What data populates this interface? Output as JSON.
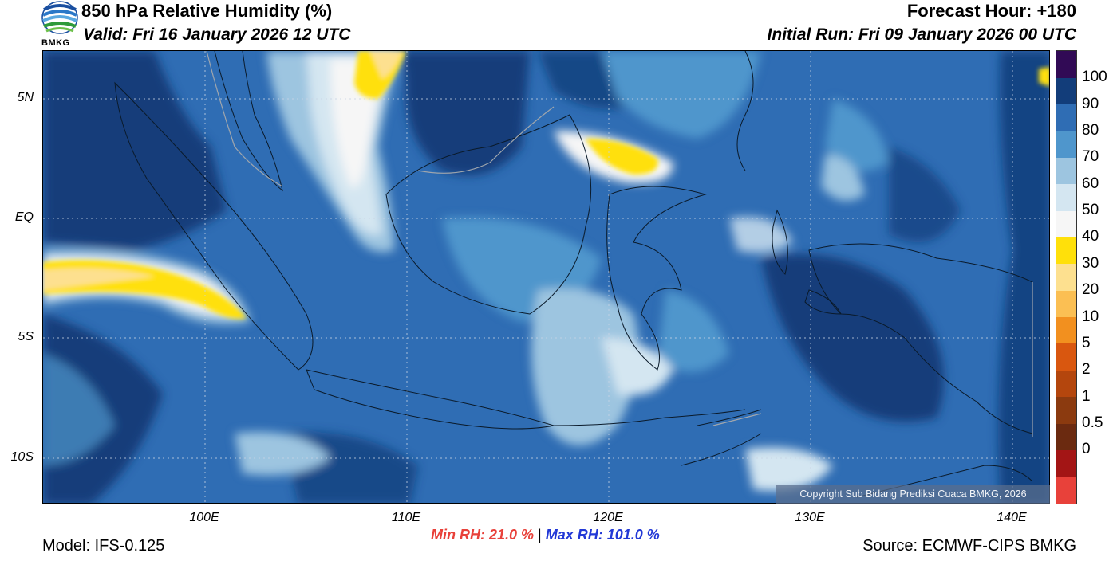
{
  "header": {
    "title": "850 hPa Relative Humidity (%)",
    "valid": "Valid: Fri 16 January 2026 12 UTC",
    "forecast_hour": "Forecast Hour: +180",
    "initial_run": "Initial Run: Fri 09 January 2026 00 UTC"
  },
  "logo": {
    "text": "BMKG",
    "icon": "bmkg-logo-icon"
  },
  "map": {
    "lat_labels": [
      "5N",
      "EQ",
      "5S",
      "10S"
    ],
    "lon_labels": [
      "100E",
      "110E",
      "120E",
      "130E",
      "140E"
    ],
    "copyright": "Copyright Sub Bidang Prediksi Cuaca BMKG, 2026"
  },
  "colorbar": {
    "labels": [
      "100",
      "90",
      "80",
      "70",
      "60",
      "50",
      "40",
      "30",
      "20",
      "10",
      "5",
      "2",
      "1",
      "0.5",
      "0"
    ],
    "colors": [
      "#e8413a",
      "#a31515",
      "#6b2a10",
      "#8b3a0f",
      "#b4460d",
      "#d9570f",
      "#f2901f",
      "#fbbf53",
      "#fde08f",
      "#ffe00a",
      "#f6f6f6",
      "#d4e6f1",
      "#9dc5e0",
      "#4f96cc",
      "#2f6db4",
      "#123d7a",
      "#310a55"
    ]
  },
  "stats": {
    "min": "Min RH:  21.0 %",
    "sep": "|",
    "max": "Max RH: 101.0 %"
  },
  "footer": {
    "model": "Model: IFS-0.125",
    "source": "Source: ECMWF-CIPS BMKG"
  }
}
